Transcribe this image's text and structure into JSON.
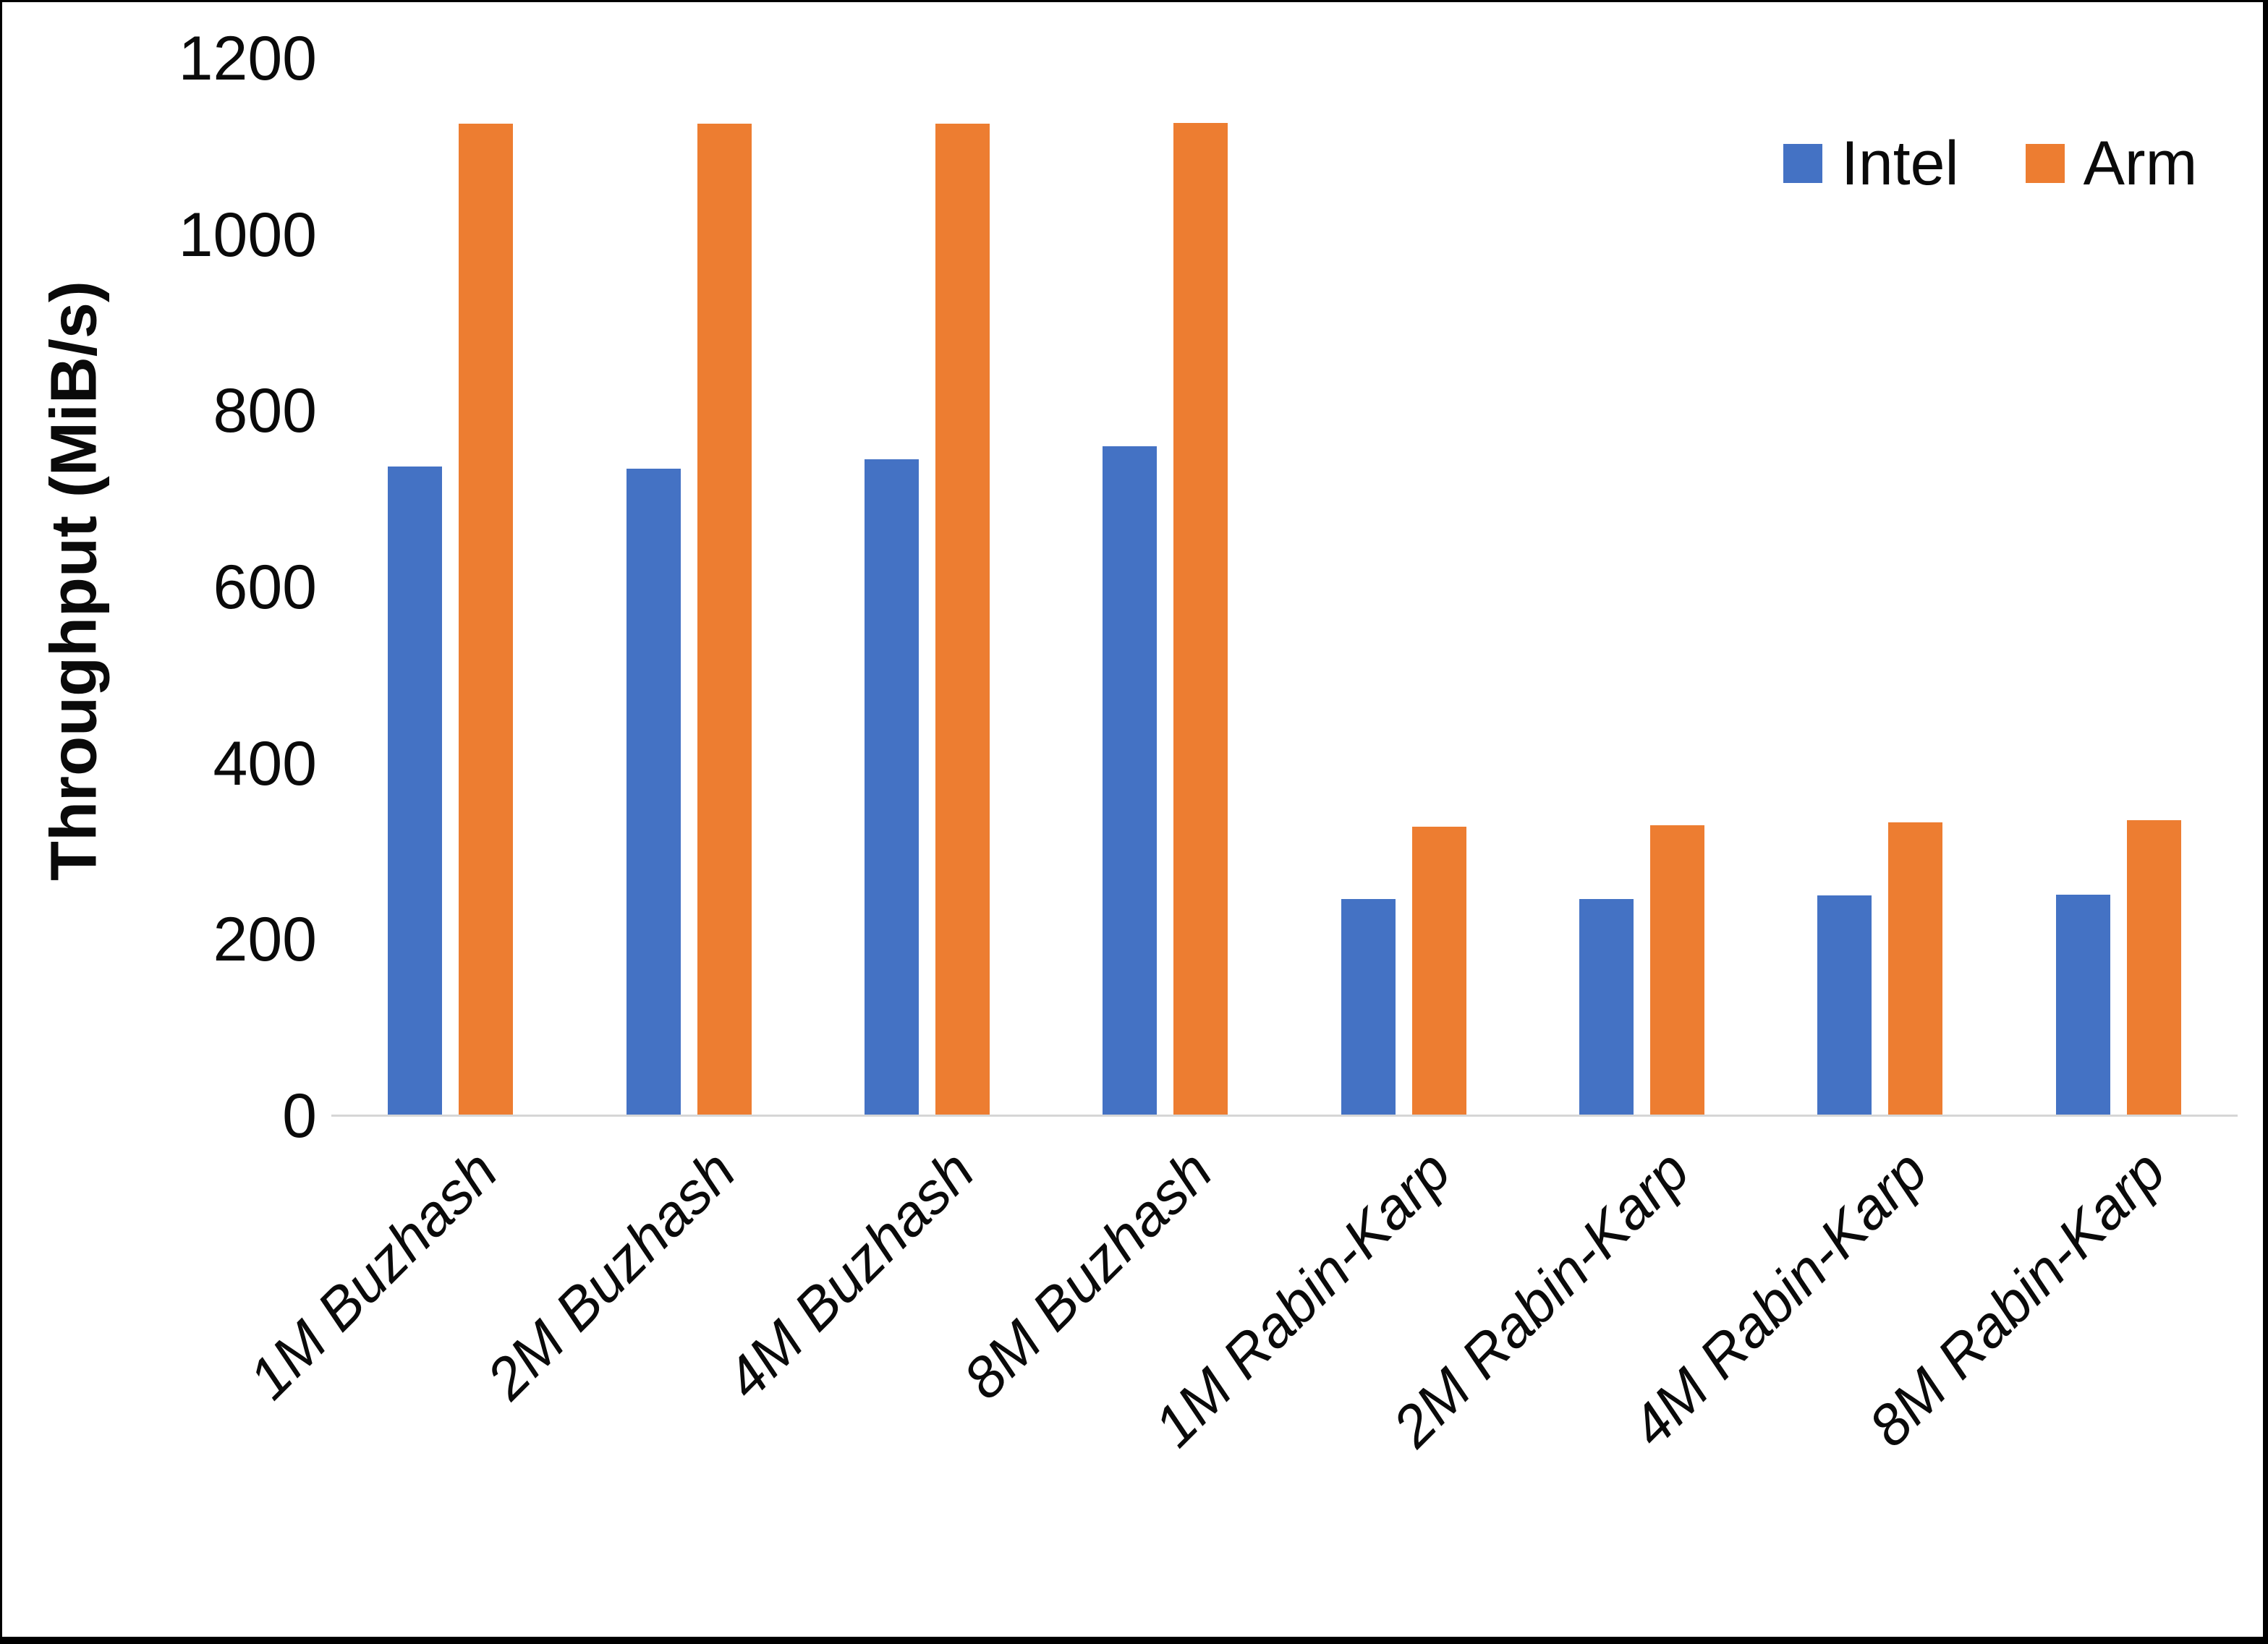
{
  "chart_data": {
    "type": "bar",
    "title": "",
    "ylabel": "Throughput (MiB/s)",
    "xlabel": "",
    "categories": [
      "1M Buzhash",
      "2M Buzhash",
      "4M Buzhash",
      "8M Buzhash",
      "1M Rabin-Karp",
      "2M Rabin-Karp",
      "4M Rabin-Karp",
      "8M Rabin-Karp"
    ],
    "series": [
      {
        "name": "Intel",
        "color": "#4472C4",
        "values": [
          737,
          735,
          745,
          760,
          246,
          246,
          250,
          251
        ]
      },
      {
        "name": "Arm",
        "color": "#ED7D31",
        "values": [
          1126,
          1126,
          1126,
          1127,
          328,
          330,
          333,
          336
        ]
      }
    ],
    "ylim": [
      0,
      1200
    ],
    "yticks": [
      0,
      200,
      400,
      600,
      800,
      1000,
      1200
    ],
    "grid": false,
    "legend_position": "top-right",
    "axis_line_color": "#d6d6d6"
  }
}
